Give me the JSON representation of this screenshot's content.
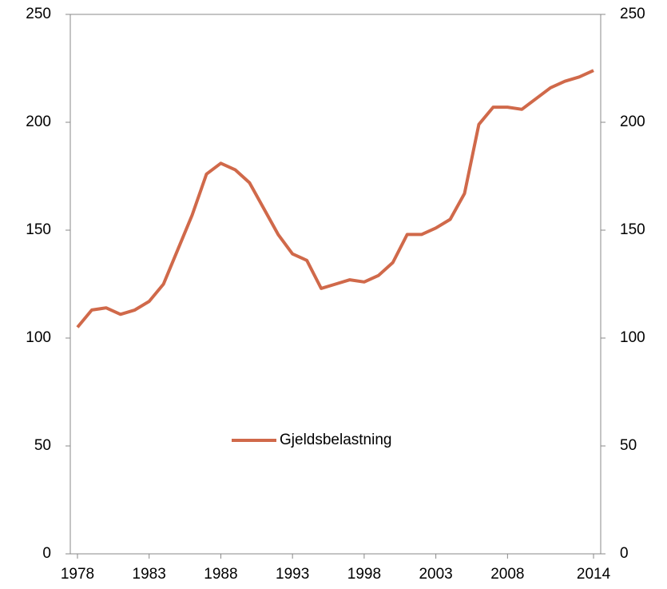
{
  "chart_data": {
    "type": "line",
    "x": [
      1978,
      1979,
      1980,
      1981,
      1982,
      1983,
      1984,
      1985,
      1986,
      1987,
      1988,
      1989,
      1990,
      1991,
      1992,
      1993,
      1994,
      1995,
      1996,
      1997,
      1998,
      1999,
      2000,
      2001,
      2002,
      2003,
      2004,
      2005,
      2006,
      2007,
      2008,
      2009,
      2010,
      2011,
      2012,
      2013,
      2014
    ],
    "series": [
      {
        "name": "Gjeldsbelastning",
        "color": "#d0694a",
        "values": [
          105,
          113,
          114,
          111,
          113,
          117,
          125,
          141,
          157,
          176,
          181,
          178,
          172,
          160,
          148,
          139,
          136,
          123,
          125,
          127,
          126,
          129,
          135,
          148,
          148,
          151,
          155,
          167,
          199,
          207,
          207,
          206,
          211,
          216,
          219,
          221,
          224
        ]
      }
    ],
    "xlim": [
      1977.5,
      2014.5
    ],
    "xticks": [
      1978,
      1983,
      1988,
      1993,
      1998,
      2003,
      2008,
      2014
    ],
    "ylim": [
      0,
      250
    ],
    "yticks": [
      0,
      50,
      100,
      150,
      200,
      250
    ],
    "y2lim": [
      0,
      250
    ],
    "y2ticks": [
      0,
      50,
      100,
      150,
      200,
      250
    ],
    "legend": "center"
  }
}
